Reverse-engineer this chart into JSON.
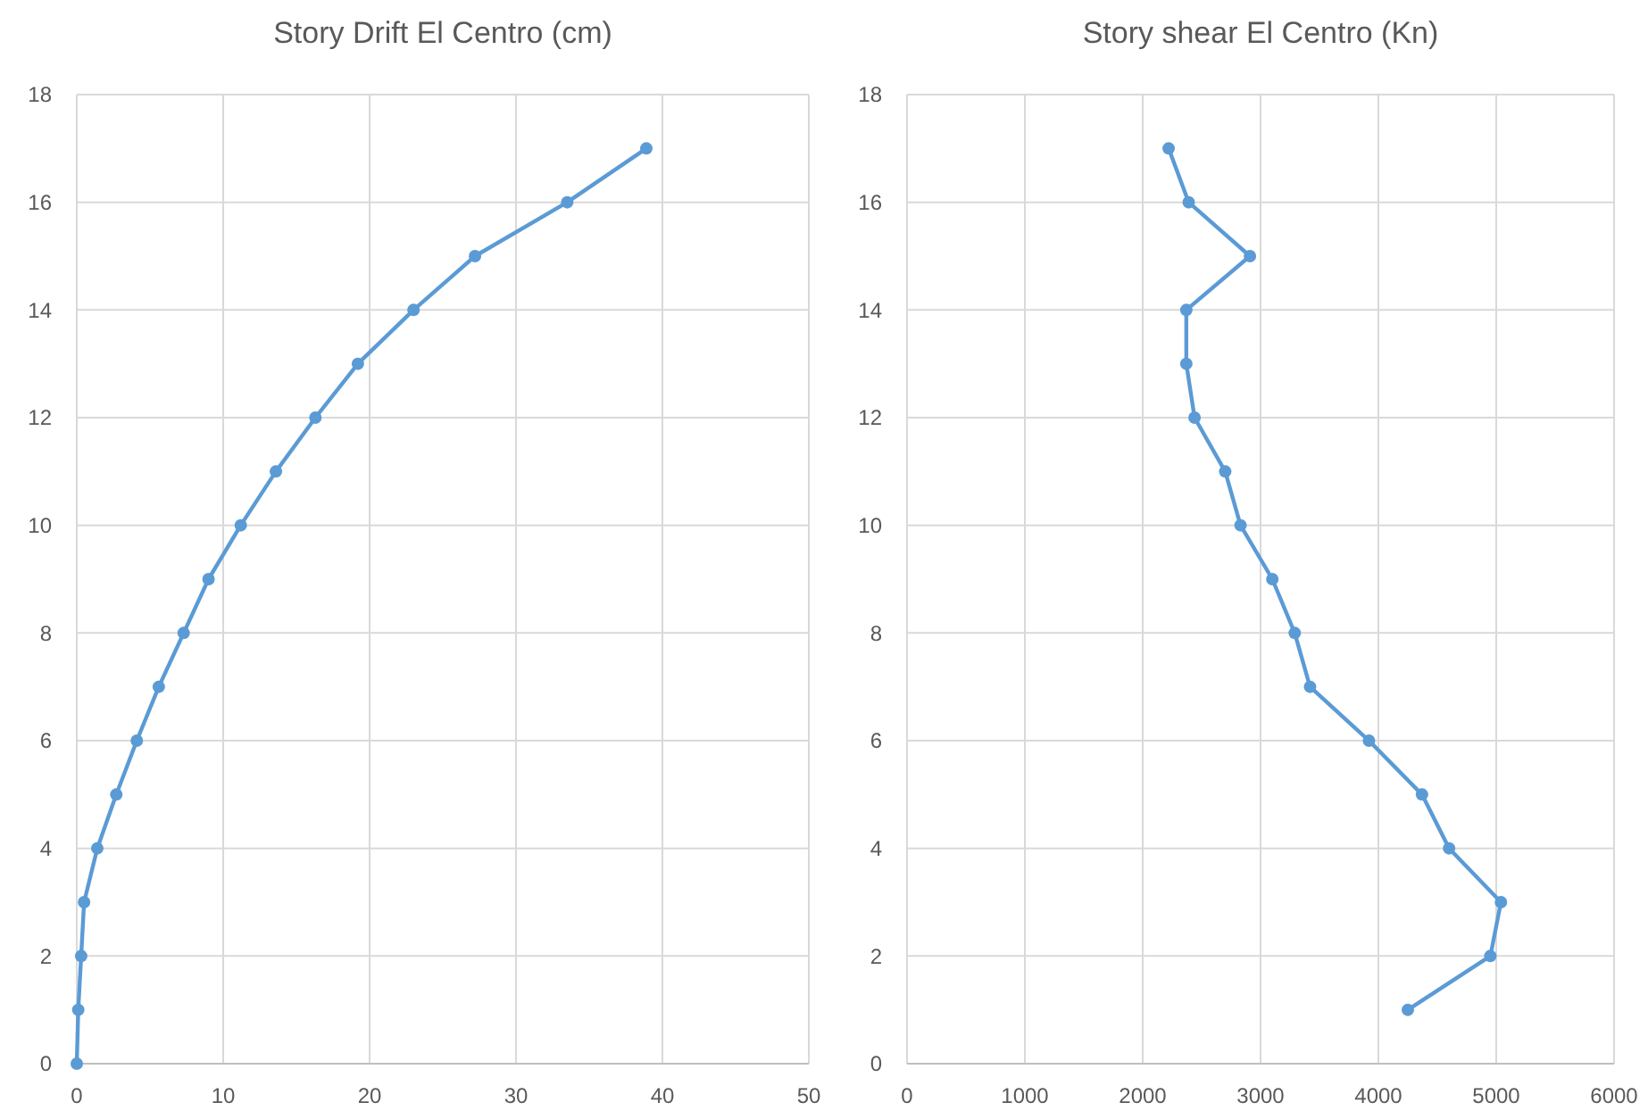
{
  "chart_data": [
    {
      "type": "line",
      "title": "Story Drift El Centro (cm)",
      "xlim": [
        0,
        50
      ],
      "xticks": [
        0,
        10,
        20,
        30,
        40,
        50
      ],
      "ylim": [
        0,
        18
      ],
      "yticks": [
        0,
        2,
        4,
        6,
        8,
        10,
        12,
        14,
        16,
        18
      ],
      "grid": true,
      "marker": "circle",
      "line_style": "solid",
      "series": [
        {
          "color": "#5b9bd5",
          "x": [
            0,
            0.1,
            0.3,
            0.5,
            1.4,
            2.7,
            4.1,
            5.6,
            7.3,
            9.0,
            11.2,
            13.6,
            16.3,
            19.2,
            23.0,
            27.2,
            33.5,
            38.9
          ],
          "values": [
            0,
            1,
            2,
            3,
            4,
            5,
            6,
            7,
            8,
            9,
            10,
            11,
            12,
            13,
            14,
            15,
            16,
            17
          ]
        }
      ]
    },
    {
      "type": "line",
      "title": "Story shear El Centro (Kn)",
      "xlim": [
        0,
        6000
      ],
      "xticks": [
        0,
        1000,
        2000,
        3000,
        4000,
        5000,
        6000
      ],
      "ylim": [
        0,
        18
      ],
      "yticks": [
        0,
        2,
        4,
        6,
        8,
        10,
        12,
        14,
        16,
        18
      ],
      "grid": true,
      "marker": "circle",
      "line_style": "solid",
      "series": [
        {
          "color": "#5b9bd5",
          "x": [
            4250,
            4950,
            5040,
            4600,
            4370,
            3920,
            3420,
            3290,
            3100,
            2830,
            2700,
            2440,
            2370,
            2370,
            2910,
            2390,
            2220
          ],
          "values": [
            1,
            2,
            3,
            4,
            5,
            6,
            7,
            8,
            9,
            10,
            11,
            12,
            13,
            14,
            15,
            16,
            17
          ]
        }
      ]
    }
  ]
}
